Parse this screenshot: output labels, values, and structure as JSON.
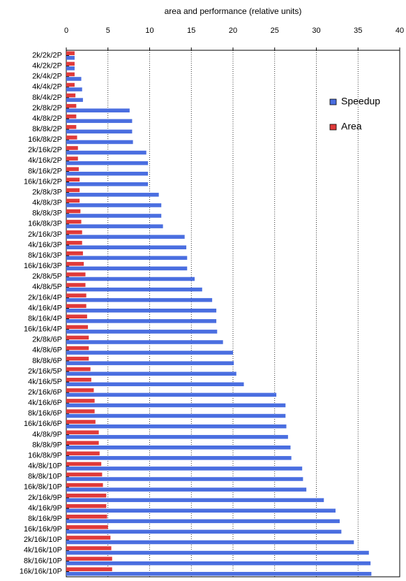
{
  "chart_data": {
    "type": "barh",
    "xlabel": "area and performance (relative units)",
    "categories": [
      "2k/2k/2P",
      "4k/2k/2P",
      "2k/4k/2P",
      "4k/4k/2P",
      "8k/4k/2P",
      "2k/8k/2P",
      "4k/8k/2P",
      "8k/8k/2P",
      "16k/8k/2P",
      "2k/16k/2P",
      "4k/16k/2P",
      "8k/16k/2P",
      "16k/16k/2P",
      "2k/8k/3P",
      "4k/8k/3P",
      "8k/8k/3P",
      "16k/8k/3P",
      "2k/16k/3P",
      "4k/16k/3P",
      "8k/16k/3P",
      "16k/16k/3P",
      "2k/8k/5P",
      "4k/8k/5P",
      "2k/16k/4P",
      "4k/16k/4P",
      "8k/16k/4P",
      "16k/16k/4P",
      "2k/8k/6P",
      "4k/8k/6P",
      "8k/8k/6P",
      "2k/16k/5P",
      "4k/16k/5P",
      "2k/16k/6P",
      "4k/16k/6P",
      "8k/16k/6P",
      "16k/16k/6P",
      "4k/8k/9P",
      "8k/8k/9P",
      "16k/8k/9P",
      "4k/8k/10P",
      "8k/8k/10P",
      "16k/8k/10P",
      "2k/16k/9P",
      "4k/16k/9P",
      "8k/16k/9P",
      "16k/16k/9P",
      "2k/16k/10P",
      "4k/16k/10P",
      "8k/16k/10P",
      "16k/16k/10P"
    ],
    "series": [
      {
        "name": "Speedup",
        "color": "#4a6ee0",
        "values": [
          1.0,
          1.0,
          1.8,
          1.9,
          2.0,
          7.6,
          7.9,
          7.9,
          8.0,
          9.6,
          9.8,
          9.8,
          9.8,
          11.1,
          11.4,
          11.4,
          11.6,
          14.2,
          14.4,
          14.5,
          14.5,
          15.4,
          16.3,
          17.5,
          18.0,
          18.0,
          18.1,
          18.8,
          20.0,
          20.1,
          20.4,
          21.3,
          25.2,
          26.3,
          26.3,
          26.4,
          26.6,
          26.9,
          27.0,
          28.3,
          28.4,
          28.8,
          30.9,
          32.3,
          32.8,
          33.0,
          34.5,
          36.3,
          36.5,
          36.6
        ]
      },
      {
        "name": "Area",
        "color": "#e03a3a",
        "values": [
          1.0,
          1.0,
          1.0,
          1.0,
          1.1,
          1.2,
          1.2,
          1.2,
          1.3,
          1.4,
          1.4,
          1.5,
          1.6,
          1.6,
          1.6,
          1.7,
          1.8,
          1.9,
          1.9,
          2.0,
          2.1,
          2.3,
          2.3,
          2.4,
          2.4,
          2.5,
          2.6,
          2.7,
          2.7,
          2.7,
          2.9,
          3.0,
          3.3,
          3.4,
          3.4,
          3.5,
          3.9,
          3.9,
          4.0,
          4.2,
          4.3,
          4.4,
          4.8,
          4.8,
          4.9,
          5.0,
          5.3,
          5.4,
          5.5,
          5.5
        ]
      }
    ],
    "xlim": [
      0,
      40
    ],
    "xticks": [
      0,
      5,
      10,
      15,
      20,
      25,
      30,
      35,
      40
    ],
    "grid": true,
    "legend": "right"
  }
}
